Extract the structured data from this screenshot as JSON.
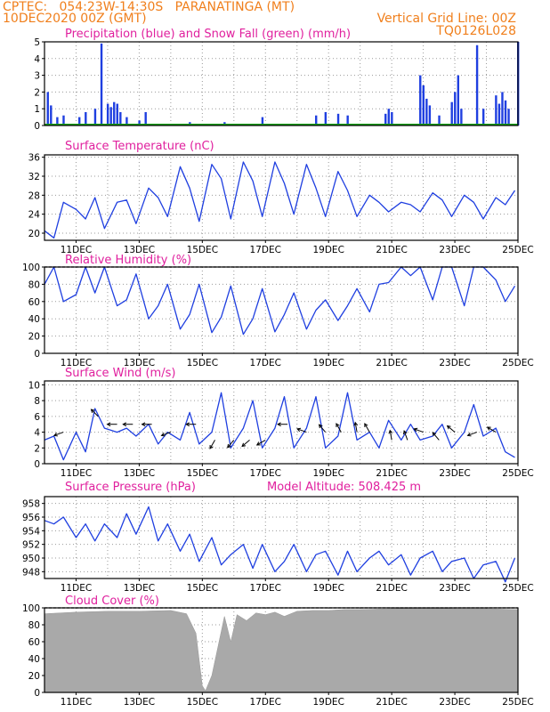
{
  "header": {
    "line1_left": "CPTEC:   054:23W-14:30S   PARANATINGA (MT)",
    "line2_left": "10DEC2020 00Z (GMT)",
    "line2_right": "Vertical Grid Line: 00Z",
    "line3_right": "TQ0126L028"
  },
  "colors": {
    "header": "#f07f1c",
    "title": "#e0209e",
    "line": "#1f3fe0",
    "snow": "#12a012",
    "cloud": "#a9a9a9"
  },
  "x_tick_labels": [
    "11DEC",
    "13DEC",
    "15DEC",
    "17DEC",
    "19DEC",
    "21DEC",
    "23DEC",
    "25DEC"
  ],
  "chart_data": [
    {
      "type": "bar",
      "title": "Precipitation (blue) and Snow Fall (green) (mm/h)",
      "ylim": [
        0,
        5
      ],
      "yticks": [
        "0",
        "1",
        "2",
        "3",
        "4",
        "5"
      ],
      "series": [
        {
          "name": "Precipitation",
          "x": [
            10.1,
            10.2,
            10.4,
            10.6,
            11.1,
            11.3,
            11.6,
            11.8,
            12.0,
            12.1,
            12.2,
            12.3,
            12.4,
            12.6,
            13.0,
            13.2,
            14.6,
            15.7,
            16.9,
            18.6,
            18.9,
            19.3,
            19.6,
            20.8,
            20.9,
            21.0,
            21.9,
            22.0,
            22.1,
            22.2,
            22.5,
            22.9,
            23.0,
            23.1,
            23.2,
            23.7,
            23.9,
            24.3,
            24.4,
            24.5,
            24.6,
            24.7,
            25.0
          ],
          "values": [
            2.0,
            1.2,
            0.5,
            0.6,
            0.5,
            0.8,
            1.0,
            4.9,
            1.3,
            1.1,
            1.4,
            1.3,
            0.8,
            0.5,
            0.3,
            0.8,
            0.2,
            0.2,
            0.5,
            0.6,
            0.8,
            0.7,
            0.6,
            0.7,
            1.0,
            0.8,
            3.0,
            2.4,
            1.6,
            1.2,
            0.6,
            1.4,
            2.0,
            3.0,
            1.0,
            4.8,
            1.0,
            1.8,
            1.3,
            2.0,
            1.5,
            1.0,
            5.0
          ]
        },
        {
          "name": "Snow Fall",
          "values": [
            0
          ]
        }
      ]
    },
    {
      "type": "line",
      "title": "Surface Temperature (nC)",
      "ylim": [
        18.5,
        36.5
      ],
      "yticks": [
        "20",
        "24",
        "28",
        "32",
        "36"
      ],
      "x": [
        10.0,
        10.3,
        10.6,
        11.0,
        11.3,
        11.6,
        11.9,
        12.3,
        12.6,
        12.9,
        13.3,
        13.6,
        13.9,
        14.3,
        14.6,
        14.9,
        15.3,
        15.6,
        15.9,
        16.3,
        16.6,
        16.9,
        17.3,
        17.6,
        17.9,
        18.3,
        18.6,
        18.9,
        19.3,
        19.6,
        19.9,
        20.3,
        20.6,
        20.9,
        21.3,
        21.6,
        21.9,
        22.3,
        22.6,
        22.9,
        23.3,
        23.6,
        23.9,
        24.3,
        24.6,
        24.9
      ],
      "values": [
        20.5,
        19.0,
        26.5,
        25.0,
        23.0,
        27.5,
        21.0,
        26.5,
        27.0,
        22.0,
        29.5,
        27.5,
        23.5,
        34.0,
        29.5,
        22.5,
        34.5,
        31.5,
        23.0,
        35.0,
        31.0,
        23.5,
        35.0,
        30.5,
        24.0,
        34.5,
        29.5,
        23.5,
        33.0,
        29.0,
        23.5,
        28.0,
        26.5,
        24.5,
        26.5,
        26.0,
        24.5,
        28.5,
        27.0,
        23.5,
        28.0,
        26.5,
        23.0,
        27.5,
        26.0,
        29.0
      ]
    },
    {
      "type": "line",
      "title": "Relative Humidity (%)",
      "ylim": [
        0,
        100
      ],
      "yticks": [
        "0",
        "20",
        "40",
        "60",
        "80",
        "100"
      ],
      "x": [
        10.0,
        10.3,
        10.6,
        11.0,
        11.3,
        11.6,
        11.9,
        12.3,
        12.6,
        12.9,
        13.3,
        13.6,
        13.9,
        14.3,
        14.6,
        14.9,
        15.3,
        15.6,
        15.9,
        16.3,
        16.6,
        16.9,
        17.3,
        17.6,
        17.9,
        18.3,
        18.6,
        18.9,
        19.3,
        19.6,
        19.9,
        20.3,
        20.6,
        20.9,
        21.3,
        21.6,
        21.9,
        22.3,
        22.6,
        22.9,
        23.3,
        23.6,
        23.9,
        24.3,
        24.6,
        24.9
      ],
      "values": [
        80,
        100,
        60,
        68,
        100,
        70,
        100,
        55,
        62,
        92,
        40,
        55,
        80,
        28,
        45,
        80,
        24,
        42,
        78,
        22,
        40,
        75,
        25,
        45,
        70,
        28,
        50,
        62,
        38,
        55,
        75,
        48,
        80,
        82,
        100,
        90,
        100,
        62,
        100,
        100,
        55,
        100,
        100,
        85,
        60,
        78
      ]
    },
    {
      "type": "line",
      "title": "Surface Wind (m/s)",
      "ylim": [
        0,
        10.5
      ],
      "yticks": [
        "0",
        "2",
        "4",
        "6",
        "8",
        "10"
      ],
      "x": [
        10.0,
        10.3,
        10.6,
        11.0,
        11.3,
        11.6,
        11.9,
        12.3,
        12.6,
        12.9,
        13.3,
        13.6,
        13.9,
        14.3,
        14.6,
        14.9,
        15.3,
        15.6,
        15.9,
        16.3,
        16.6,
        16.9,
        17.3,
        17.6,
        17.9,
        18.3,
        18.6,
        18.9,
        19.3,
        19.6,
        19.9,
        20.3,
        20.6,
        20.9,
        21.3,
        21.6,
        21.9,
        22.3,
        22.6,
        22.9,
        23.3,
        23.6,
        23.9,
        24.3,
        24.6,
        24.9
      ],
      "values": [
        3.0,
        3.5,
        0.5,
        4.0,
        1.5,
        7.0,
        4.5,
        4.0,
        4.5,
        3.5,
        5.0,
        2.5,
        4.0,
        3.0,
        6.5,
        2.5,
        4.0,
        9.0,
        2.0,
        4.5,
        8.0,
        2.0,
        4.5,
        8.5,
        2.0,
        4.5,
        8.5,
        2.0,
        3.5,
        9.0,
        3.0,
        4.0,
        2.0,
        5.5,
        3.0,
        5.0,
        3.0,
        3.5,
        5.0,
        2.0,
        4.0,
        7.5,
        3.5,
        4.5,
        1.5,
        0.8
      ]
    },
    {
      "type": "line",
      "title": "Surface Pressure (hPa)",
      "annotation": "Model Altitude: 508.425 m",
      "ylim": [
        947,
        959
      ],
      "yticks": [
        "948",
        "950",
        "952",
        "954",
        "956",
        "958"
      ],
      "x": [
        10.0,
        10.3,
        10.6,
        11.0,
        11.3,
        11.6,
        11.9,
        12.3,
        12.6,
        12.9,
        13.3,
        13.6,
        13.9,
        14.3,
        14.6,
        14.9,
        15.3,
        15.6,
        15.9,
        16.3,
        16.6,
        16.9,
        17.3,
        17.6,
        17.9,
        18.3,
        18.6,
        18.9,
        19.3,
        19.6,
        19.9,
        20.3,
        20.6,
        20.9,
        21.3,
        21.6,
        21.9,
        22.3,
        22.6,
        22.9,
        23.3,
        23.6,
        23.9,
        24.3,
        24.6,
        24.9
      ],
      "values": [
        955.5,
        955,
        956,
        953,
        955,
        952.5,
        955,
        953,
        956.5,
        953.5,
        957.5,
        952.5,
        955,
        951,
        953.5,
        949.5,
        953,
        949,
        950.5,
        952,
        948.5,
        952,
        948,
        949.5,
        952,
        948,
        950.5,
        951,
        947.5,
        951,
        948,
        950,
        951,
        949,
        950.5,
        947.5,
        950,
        951,
        948,
        949.5,
        950,
        947,
        949,
        949.5,
        946.5,
        950
      ]
    },
    {
      "type": "area",
      "title": "Cloud Cover (%)",
      "ylim": [
        0,
        100
      ],
      "yticks": [
        "0",
        "20",
        "40",
        "60",
        "80",
        "100"
      ],
      "x": [
        10.0,
        11.0,
        12.0,
        13.0,
        14.0,
        14.5,
        14.8,
        15.0,
        15.1,
        15.3,
        15.5,
        15.7,
        15.9,
        16.1,
        16.4,
        16.7,
        17.0,
        17.3,
        17.6,
        18.0,
        18.5,
        19.0,
        19.5,
        20.0,
        21.0,
        22.0,
        23.0,
        24.0,
        25.0
      ],
      "values": [
        93,
        95,
        96,
        96,
        97,
        93,
        70,
        8,
        2,
        20,
        55,
        90,
        60,
        92,
        85,
        94,
        92,
        95,
        90,
        96,
        97,
        97,
        98,
        98,
        99,
        100,
        99,
        99,
        98
      ]
    }
  ]
}
